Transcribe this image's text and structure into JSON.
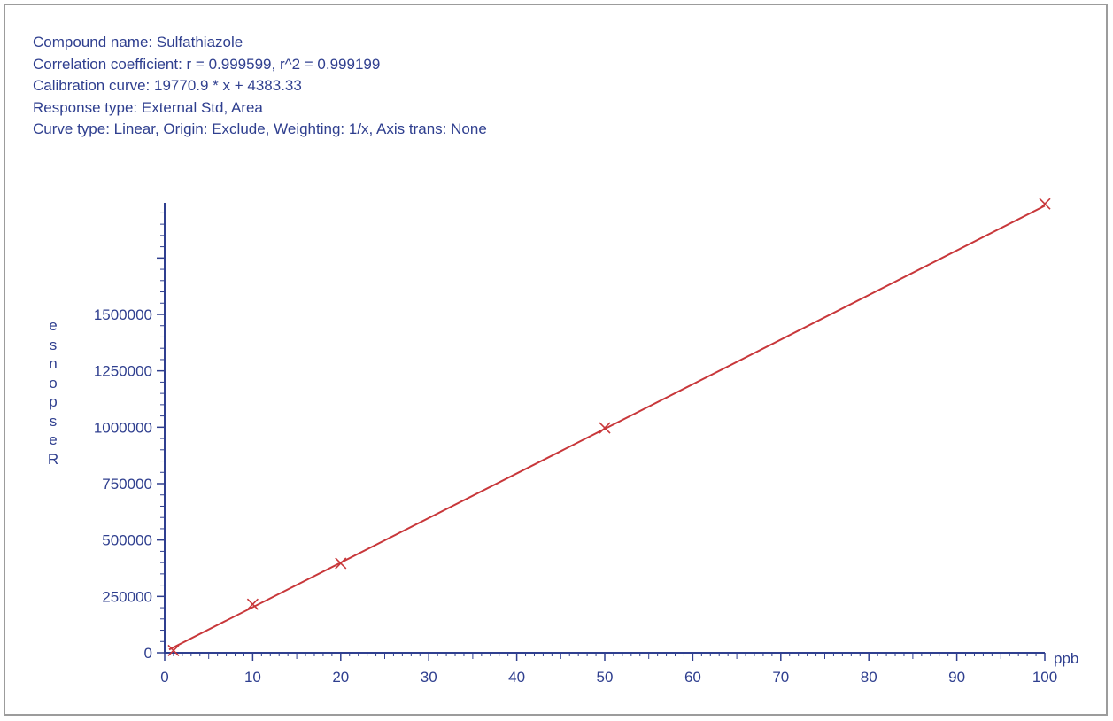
{
  "header": {
    "lines": [
      "Compound name: Sulfathiazole",
      "Correlation coefficient: r = 0.999599, r^2 = 0.999199",
      "Calibration curve: 19770.9 * x + 4383.33",
      "Response type: External Std, Area",
      "Curve type: Linear, Origin: Exclude, Weighting: 1/x, Axis trans: None"
    ]
  },
  "chart_data": {
    "type": "scatter",
    "xlabel": "ppb",
    "ylabel_chars": [
      "e",
      "s",
      "n",
      "o",
      "p",
      "s",
      "e",
      "R"
    ],
    "xlim": [
      0,
      100
    ],
    "ylim": [
      0,
      2000000
    ],
    "x_ticks": [
      0,
      10,
      20,
      30,
      40,
      50,
      60,
      70,
      80,
      90,
      100
    ],
    "y_ticks": [
      0,
      250000,
      500000,
      750000,
      1000000,
      1250000,
      1500000
    ],
    "x_tick_labels": [
      "0",
      "10",
      "20",
      "30",
      "40",
      "50",
      "60",
      "70",
      "80",
      "90",
      "100"
    ],
    "y_tick_labels": [
      "0",
      "250000",
      "500000",
      "750000",
      "1000000",
      "1250000",
      "1500000"
    ],
    "points": [
      {
        "x": 1,
        "y": 10000
      },
      {
        "x": 10,
        "y": 215000
      },
      {
        "x": 20,
        "y": 397000
      },
      {
        "x": 50,
        "y": 997000
      },
      {
        "x": 100,
        "y": 1990000
      }
    ],
    "fit": {
      "slope": 19770.9,
      "intercept": 4383.33,
      "x_range": [
        0.5,
        100
      ]
    },
    "colors": {
      "axis": "#2f3f8f",
      "text": "#2f3f8f",
      "fit": "#c8373a",
      "marker": "#c8373a"
    },
    "grid": false,
    "legend": "none"
  }
}
